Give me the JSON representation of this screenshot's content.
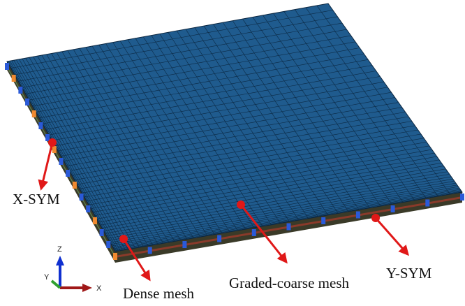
{
  "labels": {
    "x_sym": "X-SYM",
    "dense_mesh": "Dense mesh",
    "graded_coarse_mesh": "Graded-coarse mesh",
    "y_sym": "Y-SYM"
  },
  "triad": {
    "z": "Z",
    "y": "Y",
    "x": "X"
  }
}
